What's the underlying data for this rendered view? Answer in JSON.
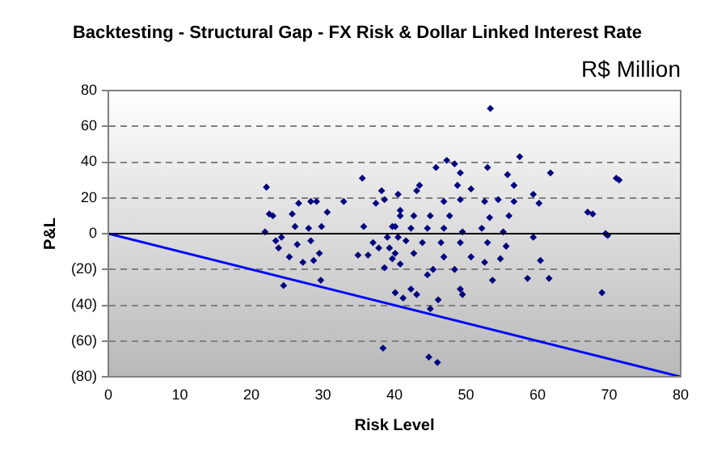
{
  "chart_data": {
    "type": "scatter",
    "title": "Backtesting - Structural Gap - FX Risk & Dollar Linked Interest Rate",
    "subtitle": "R$ Million",
    "xlabel": "Risk Level",
    "ylabel": "P&L",
    "xlim": [
      0,
      80
    ],
    "xticks": [
      0,
      10,
      20,
      30,
      40,
      50,
      60,
      70,
      80
    ],
    "ylim": [
      -80,
      80
    ],
    "yticks": [
      {
        "value": -80,
        "label": "(80)"
      },
      {
        "value": -60,
        "label": "(60)"
      },
      {
        "value": -40,
        "label": "(40)"
      },
      {
        "value": -20,
        "label": "(20)"
      },
      0,
      20,
      40,
      60,
      80
    ],
    "grid": "y",
    "legend": false,
    "marker": "diamond",
    "ref_lines": [
      {
        "axis": "y",
        "value": 0,
        "color": "#000000"
      }
    ],
    "series": [
      {
        "color": "#000080",
        "x": [
          53.4,
          38.4,
          44.8,
          46,
          71,
          69,
          69.5,
          67,
          61.8,
          60.2,
          67.7,
          71.4,
          69.8,
          60.4,
          61.6,
          22.1,
          23,
          22.5,
          21.9,
          23.4,
          23.8,
          25.3,
          24.5,
          26.6,
          25.7,
          28.3,
          29.1,
          30.6,
          29.8,
          28,
          28.3,
          26.4,
          27.2,
          28.7,
          29.5,
          29.7,
          32.9,
          26.1,
          24.2,
          35.5,
          35.7,
          34.9,
          36.3,
          37.4,
          38.2,
          38.6,
          37,
          37.8,
          39,
          39.3,
          39.7,
          38.6,
          40.1,
          41.2,
          40.5,
          40.8,
          39.7,
          40.5,
          47.3,
          45.8,
          48.4,
          49.2,
          53,
          57.5,
          55.8,
          43.5,
          43.1,
          48.8,
          50.7,
          56.7,
          46.9,
          49.2,
          52.6,
          54.5,
          56.7,
          59.4,
          40.8,
          42.7,
          45,
          47.7,
          53.3,
          56,
          40.1,
          42.3,
          44.6,
          46.9,
          49.5,
          52.2,
          55.2,
          59.4,
          41.6,
          43.9,
          46.5,
          49.2,
          53,
          55.6,
          40.1,
          42.7,
          46.9,
          50.7,
          52.6,
          54.8,
          40.8,
          45.4,
          48.4,
          58.6,
          53.7,
          44.6,
          49.2,
          49.5,
          42.3,
          43.1,
          46.1,
          45
        ],
        "values": [
          70,
          -64,
          -69,
          -72,
          31,
          -33,
          0,
          12,
          34,
          17,
          11,
          30,
          -1,
          -15,
          -25,
          26,
          10,
          11,
          1,
          -4,
          -8,
          -13,
          -29,
          17,
          11,
          18,
          18,
          12,
          4,
          3,
          -4,
          -6,
          -16,
          -15,
          -11,
          -26,
          18,
          4,
          -2,
          31,
          4,
          -12,
          -12,
          17,
          24,
          19,
          -5,
          -8,
          -2,
          -8,
          -14,
          -19,
          -33,
          -36,
          22,
          10,
          4,
          -2,
          41,
          37,
          39,
          34,
          37,
          43,
          33,
          27,
          24,
          27,
          25,
          27,
          18,
          19,
          18,
          19,
          18,
          22,
          13,
          10,
          10,
          10,
          9,
          10,
          4,
          3,
          3,
          3,
          1,
          3,
          1,
          -2,
          -4,
          -5,
          -5,
          -5,
          -5,
          -7,
          -11,
          -11,
          -13,
          -13,
          -16,
          -14,
          -17,
          -20,
          -20,
          -25,
          -26,
          -23,
          -31,
          -34,
          -31,
          -34,
          -37,
          -42
        ]
      },
      {
        "type": "line",
        "color": "#0000ff",
        "marker": "none",
        "x": [
          0,
          80
        ],
        "values": [
          0,
          -80
        ]
      }
    ]
  }
}
